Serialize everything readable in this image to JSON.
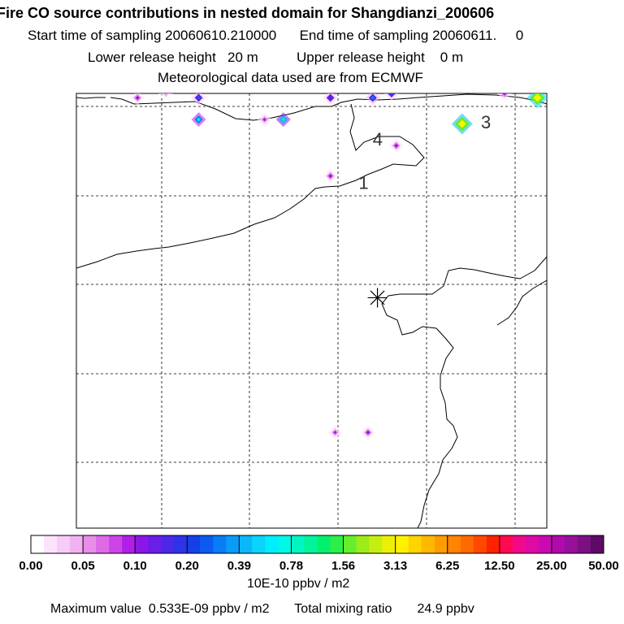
{
  "header": {
    "title": "Fire CO source contributions in nested domain for Shangdianzi_200606",
    "start_label": "Start time of sampling",
    "start_value": "20060610.210000",
    "end_label": "End time of sampling",
    "end_value": "20060611.",
    "end_extra": "0",
    "lower_label": "Lower release height",
    "lower_value": "20 m",
    "upper_label": "Upper release height",
    "upper_value": "0 m",
    "met": "Meteorological data used are from ECMWF"
  },
  "chart_data": {
    "type": "heatmap",
    "map_labels": [
      {
        "text": "1",
        "lon": 0.6,
        "lat": 0.78
      },
      {
        "text": "3",
        "lon": 0.86,
        "lat": 0.92
      },
      {
        "text": "4",
        "lon": 0.63,
        "lat": 0.88
      }
    ],
    "receptor": {
      "symbol": "asterisk",
      "lon": 0.64,
      "lat": 0.53
    },
    "colorbar": {
      "tick_labels": [
        "0.00",
        "0.05",
        "0.10",
        "0.20",
        "0.39",
        "0.78",
        "1.56",
        "3.13",
        "6.25",
        "12.50",
        "25.00",
        "50.00"
      ],
      "units": "10E-10 ppbv / m2",
      "colors": [
        "#ffffff",
        "#fbe4fb",
        "#f7ccf7",
        "#f2b2f2",
        "#e88de8",
        "#dd6ae6",
        "#cc44e8",
        "#b21ee8",
        "#8a16e8",
        "#6a1ee8",
        "#4b28e8",
        "#2e33e8",
        "#1540e8",
        "#0a5cf0",
        "#0a7cf4",
        "#0a9bf7",
        "#0ab8fa",
        "#0ad4fb",
        "#00eefc",
        "#00f8e6",
        "#00f6c0",
        "#00f49a",
        "#00f06e",
        "#2cf048",
        "#66ee2a",
        "#9cec1a",
        "#c8ee10",
        "#eef004",
        "#fff200",
        "#ffd400",
        "#ffb800",
        "#ff9c00",
        "#ff8400",
        "#ff6a00",
        "#ff4800",
        "#ff2200",
        "#ff0a50",
        "#f2088a",
        "#de0aa4",
        "#c80ab0",
        "#b00aaa",
        "#96109a",
        "#7a1082",
        "#5e0a66"
      ]
    },
    "plumes": [
      {
        "lon": 0.13,
        "lat": 0.99,
        "value": 0.12
      },
      {
        "lon": 0.19,
        "lat": 1.0,
        "value": 0.06
      },
      {
        "lon": 0.26,
        "lat": 0.99,
        "value": 0.25
      },
      {
        "lon": 0.26,
        "lat": 0.94,
        "value": 0.6
      },
      {
        "lon": 0.4,
        "lat": 0.94,
        "value": 0.09
      },
      {
        "lon": 0.44,
        "lat": 0.94,
        "value": 0.8
      },
      {
        "lon": 0.54,
        "lat": 0.99,
        "value": 0.2
      },
      {
        "lon": 0.63,
        "lat": 0.99,
        "value": 0.3
      },
      {
        "lon": 0.67,
        "lat": 1.0,
        "value": 0.25
      },
      {
        "lon": 0.68,
        "lat": 0.88,
        "value": 0.12
      },
      {
        "lon": 0.54,
        "lat": 0.81,
        "value": 0.1
      },
      {
        "lon": 0.82,
        "lat": 0.93,
        "value": 3.2
      },
      {
        "lon": 0.91,
        "lat": 1.0,
        "value": 0.1
      },
      {
        "lon": 0.98,
        "lat": 0.99,
        "value": 3.5
      },
      {
        "lon": 0.55,
        "lat": 0.22,
        "value": 0.09
      },
      {
        "lon": 0.62,
        "lat": 0.22,
        "value": 0.11
      }
    ]
  },
  "footer": {
    "max_label": "Maximum value",
    "max_value": "0.533E-09 ppbv / m2",
    "total_label": "Total mixing ratio",
    "total_value": "24.9 ppbv"
  }
}
